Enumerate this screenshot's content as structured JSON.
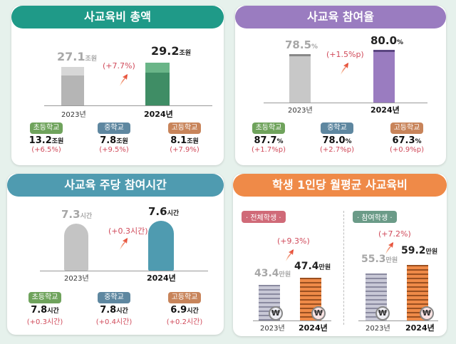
{
  "colors": {
    "teal": "#1f9a88",
    "purple": "#9a7cc0",
    "blue": "#4f9bb0",
    "orange": "#ef8a48",
    "elem": "#6fa35c",
    "mid": "#5e87a0",
    "high": "#c8845a",
    "increase": "#d04a5a"
  },
  "total": {
    "title": "사교육비 총액",
    "y2023": {
      "value": "27.1",
      "unit": "조원",
      "year": "2023년"
    },
    "y2024": {
      "value": "29.2",
      "unit": "조원",
      "year": "2024년"
    },
    "change": "(+7.7%)",
    "schools": [
      {
        "label": "초등학교",
        "value": "13.2",
        "unit": "조원",
        "change": "(+6.5%)"
      },
      {
        "label": "중학교",
        "value": "7.8",
        "unit": "조원",
        "change": "(+9.5%)"
      },
      {
        "label": "고등학교",
        "value": "8.1",
        "unit": "조원",
        "change": "(+7.9%)"
      }
    ]
  },
  "participation": {
    "title": "사교육 참여율",
    "y2023": {
      "value": "78.5",
      "unit": "%",
      "year": "2023년"
    },
    "y2024": {
      "value": "80.0",
      "unit": "%",
      "year": "2024년"
    },
    "change": "(+1.5%p)",
    "schools": [
      {
        "label": "초등학교",
        "value": "87.7",
        "unit": "%",
        "change": "(+1.7%p)"
      },
      {
        "label": "중학교",
        "value": "78.0",
        "unit": "%",
        "change": "(+2.7%p)"
      },
      {
        "label": "고등학교",
        "value": "67.3",
        "unit": "%",
        "change": "(+0.9%p)"
      }
    ]
  },
  "hours": {
    "title": "사교육 주당 참여시간",
    "y2023": {
      "value": "7.3",
      "unit": "시간",
      "year": "2023년"
    },
    "y2024": {
      "value": "7.6",
      "unit": "시간",
      "year": "2024년"
    },
    "change": "(+0.3시간)",
    "schools": [
      {
        "label": "초등학교",
        "value": "7.8",
        "unit": "시간",
        "change": "(+0.3시간)"
      },
      {
        "label": "중학교",
        "value": "7.8",
        "unit": "시간",
        "change": "(+0.4시간)"
      },
      {
        "label": "고등학교",
        "value": "6.9",
        "unit": "시간",
        "change": "(+0.2시간)"
      }
    ]
  },
  "monthly": {
    "title": "학생 1인당 월평균 사교육비",
    "coin_symbol": "₩",
    "all": {
      "label": "· 전체학생 ·",
      "y2023": {
        "value": "43.4",
        "unit": "만원",
        "year": "2023년"
      },
      "y2024": {
        "value": "47.4",
        "unit": "만원",
        "year": "2024년"
      },
      "change": "(+9.3%)"
    },
    "participants": {
      "label": "· 참여학생 ·",
      "y2023": {
        "value": "55.3",
        "unit": "만원",
        "year": "2023년"
      },
      "y2024": {
        "value": "59.2",
        "unit": "만원",
        "year": "2024년"
      },
      "change": "(+7.2%)"
    }
  }
}
